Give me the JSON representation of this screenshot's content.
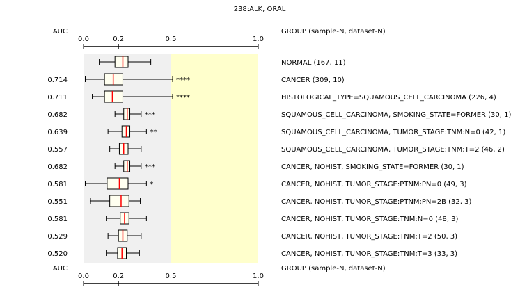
{
  "chart_data": {
    "type": "boxplot",
    "title": "238:ALK, ORAL",
    "auc_header": "AUC",
    "group_header": "GROUP (sample-N, dataset-N)",
    "xlim": [
      0.0,
      1.0
    ],
    "x_ticks": [
      {
        "value": 0.0,
        "label": "0.0"
      },
      {
        "value": 0.2,
        "label": "0.2"
      },
      {
        "value": 0.5,
        "label": "0.5"
      },
      {
        "value": 1.0,
        "label": "1.0"
      }
    ],
    "reference_line": 0.5,
    "colors": {
      "background_left": "#f0f0f0",
      "background_right": "#ffffcc",
      "median": "#ff0000",
      "blue": "#00008b",
      "red": "#dd0000",
      "brown": "#8b3a3a",
      "black": "#000000"
    },
    "rows": [
      {
        "group": "NORMAL (167, 11)",
        "auc": "",
        "stars": "",
        "color": "black",
        "whisker_low": 0.09,
        "q1": 0.18,
        "median": 0.225,
        "q3": 0.255,
        "whisker_high": 0.385
      },
      {
        "group": "CANCER (309, 10)",
        "auc": "0.714",
        "stars": "****",
        "color": "blue",
        "whisker_low": 0.01,
        "q1": 0.12,
        "median": 0.17,
        "q3": 0.225,
        "whisker_high": 0.51
      },
      {
        "group": "HISTOLOGICAL_TYPE=SQUAMOUS_CELL_CARCINOMA (226, 4)",
        "auc": "0.711",
        "stars": "****",
        "color": "blue",
        "whisker_low": 0.05,
        "q1": 0.12,
        "median": 0.165,
        "q3": 0.225,
        "whisker_high": 0.51
      },
      {
        "group": "SQUAMOUS_CELL_CARCINOMA, SMOKING_STATE=FORMER (30, 1)",
        "auc": "0.682",
        "stars": "***",
        "color": "red",
        "whisker_low": 0.18,
        "q1": 0.23,
        "median": 0.25,
        "q3": 0.265,
        "whisker_high": 0.33
      },
      {
        "group": "SQUAMOUS_CELL_CARCINOMA, TUMOR_STAGE:TNM:N=0 (42, 1)",
        "auc": "0.639",
        "stars": "**",
        "color": "brown",
        "whisker_low": 0.14,
        "q1": 0.22,
        "median": 0.245,
        "q3": 0.265,
        "whisker_high": 0.36
      },
      {
        "group": "SQUAMOUS_CELL_CARCINOMA, TUMOR_STAGE:TNM:T=2 (46, 2)",
        "auc": "0.557",
        "stars": "",
        "color": "black",
        "whisker_low": 0.15,
        "q1": 0.205,
        "median": 0.23,
        "q3": 0.255,
        "whisker_high": 0.33
      },
      {
        "group": "CANCER, NOHIST, SMOKING_STATE=FORMER (30, 1)",
        "auc": "0.682",
        "stars": "***",
        "color": "red",
        "whisker_low": 0.18,
        "q1": 0.23,
        "median": 0.25,
        "q3": 0.265,
        "whisker_high": 0.33
      },
      {
        "group": "CANCER, NOHIST, TUMOR_STAGE:PTNM:PN=0 (49, 3)",
        "auc": "0.581",
        "stars": "*",
        "color": "blue",
        "whisker_low": 0.01,
        "q1": 0.135,
        "median": 0.205,
        "q3": 0.255,
        "whisker_high": 0.36
      },
      {
        "group": "CANCER, NOHIST, TUMOR_STAGE:PTNM:PN=2B (32, 3)",
        "auc": "0.551",
        "stars": "",
        "color": "black",
        "whisker_low": 0.04,
        "q1": 0.15,
        "median": 0.215,
        "q3": 0.26,
        "whisker_high": 0.325
      },
      {
        "group": "CANCER, NOHIST, TUMOR_STAGE:TNM:N=0 (48, 3)",
        "auc": "0.581",
        "stars": "",
        "color": "black",
        "whisker_low": 0.13,
        "q1": 0.21,
        "median": 0.235,
        "q3": 0.26,
        "whisker_high": 0.36
      },
      {
        "group": "CANCER, NOHIST, TUMOR_STAGE:TNM:T=2 (50, 3)",
        "auc": "0.529",
        "stars": "",
        "color": "black",
        "whisker_low": 0.14,
        "q1": 0.2,
        "median": 0.225,
        "q3": 0.25,
        "whisker_high": 0.33
      },
      {
        "group": "CANCER, NOHIST, TUMOR_STAGE:TNM:T=3 (33, 3)",
        "auc": "0.520",
        "stars": "",
        "color": "black",
        "whisker_low": 0.13,
        "q1": 0.195,
        "median": 0.22,
        "q3": 0.245,
        "whisker_high": 0.32
      }
    ]
  }
}
